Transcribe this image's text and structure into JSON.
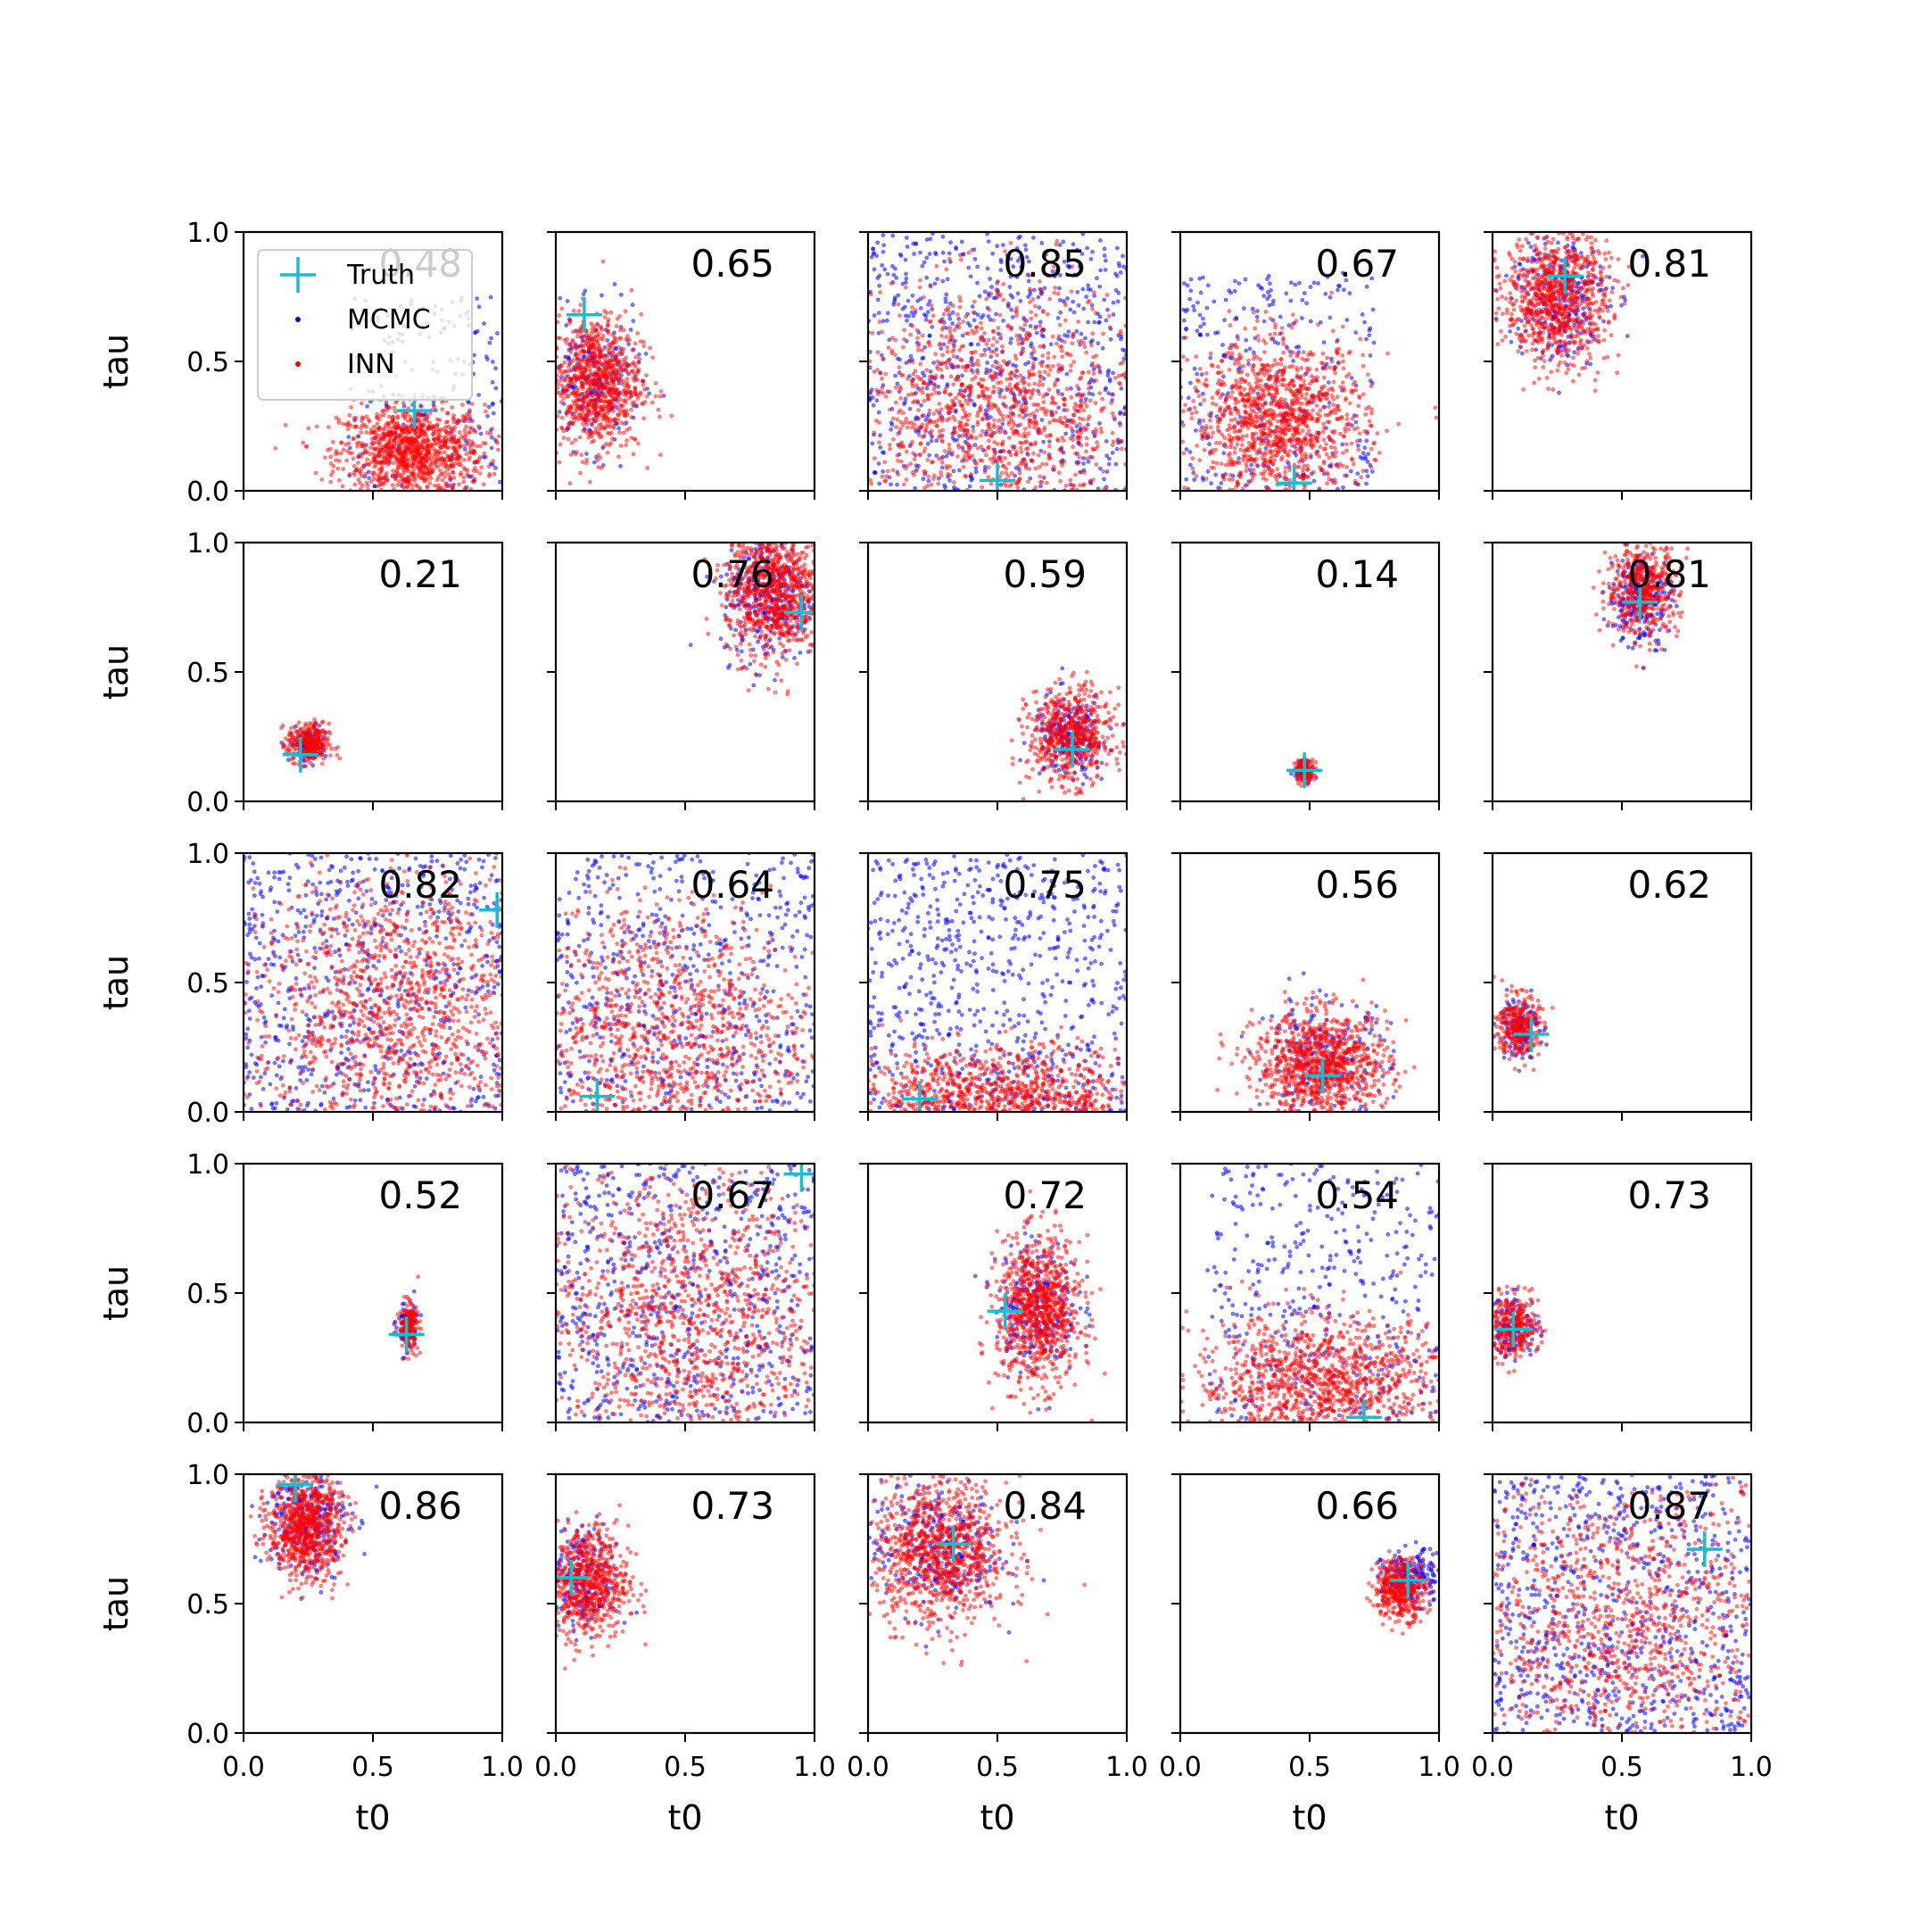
{
  "chart_data": {
    "type": "scatter",
    "grid": false,
    "legend_placement": "top-left",
    "legend": {
      "entries": [
        {
          "label": "Truth",
          "color": "#17becf",
          "marker": "plus"
        },
        {
          "label": "MCMC",
          "color": "#0000ff",
          "marker": "dot"
        },
        {
          "label": "INN",
          "color": "#ff0000",
          "marker": "dot"
        }
      ]
    },
    "xlabel": "t0",
    "ylabel": "tau",
    "xlim": [
      0,
      1
    ],
    "ylim": [
      0,
      1
    ],
    "xticks": [
      "0.0",
      "0.5",
      "1.0"
    ],
    "yticks": [
      "0.0",
      "0.5",
      "1.0"
    ],
    "colors": {
      "truth": "#17becf",
      "mcmc": "#0000ff",
      "inn": "#ff0000"
    },
    "panels": [
      {
        "score": "0.48",
        "truth": [
          0.66,
          0.31
        ],
        "mcmc": {
          "cx": 0.75,
          "cy": 0.35,
          "sx": 0.35,
          "sy": 0.4,
          "n": 220,
          "uniform": true
        },
        "inn": {
          "cx": 0.65,
          "cy": 0.15,
          "sx": 0.14,
          "sy": 0.09,
          "n": 1100
        }
      },
      {
        "score": "0.65",
        "truth": [
          0.11,
          0.68
        ],
        "mcmc": {
          "cx": 0.15,
          "cy": 0.42,
          "sx": 0.09,
          "sy": 0.13,
          "n": 200
        },
        "inn": {
          "cx": 0.15,
          "cy": 0.42,
          "sx": 0.09,
          "sy": 0.13,
          "n": 900
        }
      },
      {
        "score": "0.85",
        "truth": [
          0.5,
          0.04
        ],
        "mcmc": {
          "cx": 0.5,
          "cy": 0.5,
          "sx": 0.5,
          "sy": 0.5,
          "n": 700,
          "uniform": true
        },
        "inn": {
          "cx": 0.5,
          "cy": 0.3,
          "sx": 0.28,
          "sy": 0.24,
          "n": 1300
        }
      },
      {
        "score": "0.67",
        "truth": [
          0.44,
          0.03
        ],
        "mcmc": {
          "cx": 0.35,
          "cy": 0.4,
          "sx": 0.4,
          "sy": 0.45,
          "n": 350,
          "uniform": true
        },
        "inn": {
          "cx": 0.38,
          "cy": 0.27,
          "sx": 0.17,
          "sy": 0.15,
          "n": 1200
        }
      },
      {
        "score": "0.81",
        "truth": [
          0.28,
          0.83
        ],
        "mcmc": {
          "cx": 0.25,
          "cy": 0.75,
          "sx": 0.1,
          "sy": 0.13,
          "n": 250
        },
        "inn": {
          "cx": 0.25,
          "cy": 0.75,
          "sx": 0.1,
          "sy": 0.13,
          "n": 900
        }
      },
      {
        "score": "0.21",
        "truth": [
          0.22,
          0.18
        ],
        "mcmc": {
          "cx": 0.25,
          "cy": 0.22,
          "sx": 0.035,
          "sy": 0.035,
          "n": 80
        },
        "inn": {
          "cx": 0.25,
          "cy": 0.22,
          "sx": 0.04,
          "sy": 0.04,
          "n": 300
        }
      },
      {
        "score": "0.76",
        "truth": [
          0.95,
          0.73
        ],
        "mcmc": {
          "cx": 0.82,
          "cy": 0.8,
          "sx": 0.09,
          "sy": 0.13,
          "n": 300
        },
        "inn": {
          "cx": 0.84,
          "cy": 0.82,
          "sx": 0.09,
          "sy": 0.13,
          "n": 900
        }
      },
      {
        "score": "0.59",
        "truth": [
          0.79,
          0.2
        ],
        "mcmc": {
          "cx": 0.78,
          "cy": 0.25,
          "sx": 0.07,
          "sy": 0.08,
          "n": 200
        },
        "inn": {
          "cx": 0.78,
          "cy": 0.25,
          "sx": 0.08,
          "sy": 0.09,
          "n": 600
        }
      },
      {
        "score": "0.14",
        "truth": [
          0.48,
          0.12
        ],
        "mcmc": {
          "cx": 0.48,
          "cy": 0.12,
          "sx": 0.02,
          "sy": 0.02,
          "n": 60
        },
        "inn": {
          "cx": 0.48,
          "cy": 0.12,
          "sx": 0.018,
          "sy": 0.022,
          "n": 150
        }
      },
      {
        "score": "0.81",
        "truth": [
          0.57,
          0.77
        ],
        "mcmc": {
          "cx": 0.57,
          "cy": 0.78,
          "sx": 0.06,
          "sy": 0.09,
          "n": 220
        },
        "inn": {
          "cx": 0.58,
          "cy": 0.82,
          "sx": 0.07,
          "sy": 0.09,
          "n": 500
        }
      },
      {
        "score": "0.82",
        "truth": [
          0.98,
          0.78
        ],
        "mcmc": {
          "cx": 0.5,
          "cy": 0.5,
          "sx": 0.5,
          "sy": 0.5,
          "n": 700,
          "uniform": true
        },
        "inn": {
          "cx": 0.6,
          "cy": 0.4,
          "sx": 0.3,
          "sy": 0.28,
          "n": 1400
        }
      },
      {
        "score": "0.64",
        "truth": [
          0.16,
          0.06
        ],
        "mcmc": {
          "cx": 0.5,
          "cy": 0.5,
          "sx": 0.5,
          "sy": 0.5,
          "n": 600,
          "uniform": true
        },
        "inn": {
          "cx": 0.4,
          "cy": 0.3,
          "sx": 0.3,
          "sy": 0.26,
          "n": 1200
        }
      },
      {
        "score": "0.75",
        "truth": [
          0.2,
          0.05
        ],
        "mcmc": {
          "cx": 0.5,
          "cy": 0.5,
          "sx": 0.5,
          "sy": 0.5,
          "n": 700,
          "uniform": true
        },
        "inn": {
          "cx": 0.5,
          "cy": 0.05,
          "sx": 0.3,
          "sy": 0.1,
          "n": 1200
        }
      },
      {
        "score": "0.56",
        "truth": [
          0.55,
          0.14
        ],
        "mcmc": {
          "cx": 0.55,
          "cy": 0.2,
          "sx": 0.13,
          "sy": 0.12,
          "n": 200
        },
        "inn": {
          "cx": 0.55,
          "cy": 0.18,
          "sx": 0.13,
          "sy": 0.1,
          "n": 1000
        }
      },
      {
        "score": "0.62",
        "truth": [
          0.15,
          0.3
        ],
        "mcmc": {
          "cx": 0.1,
          "cy": 0.33,
          "sx": 0.04,
          "sy": 0.06,
          "n": 120
        },
        "inn": {
          "cx": 0.1,
          "cy": 0.33,
          "sx": 0.04,
          "sy": 0.06,
          "n": 300
        }
      },
      {
        "score": "0.52",
        "truth": [
          0.63,
          0.34
        ],
        "mcmc": {
          "cx": 0.63,
          "cy": 0.37,
          "sx": 0.02,
          "sy": 0.05,
          "n": 80
        },
        "inn": {
          "cx": 0.64,
          "cy": 0.37,
          "sx": 0.018,
          "sy": 0.045,
          "n": 200
        }
      },
      {
        "score": "0.67",
        "truth": [
          0.95,
          0.96
        ],
        "mcmc": {
          "cx": 0.5,
          "cy": 0.5,
          "sx": 0.5,
          "sy": 0.5,
          "n": 700,
          "uniform": true
        },
        "inn": {
          "cx": 0.5,
          "cy": 0.4,
          "sx": 0.3,
          "sy": 0.3,
          "n": 1300
        }
      },
      {
        "score": "0.72",
        "truth": [
          0.53,
          0.43
        ],
        "mcmc": {
          "cx": 0.65,
          "cy": 0.45,
          "sx": 0.08,
          "sy": 0.13,
          "n": 220
        },
        "inn": {
          "cx": 0.66,
          "cy": 0.43,
          "sx": 0.08,
          "sy": 0.14,
          "n": 900
        }
      },
      {
        "score": "0.54",
        "truth": [
          0.71,
          0.02
        ],
        "mcmc": {
          "cx": 0.55,
          "cy": 0.5,
          "sx": 0.45,
          "sy": 0.5,
          "n": 400,
          "uniform": true
        },
        "inn": {
          "cx": 0.55,
          "cy": 0.15,
          "sx": 0.25,
          "sy": 0.13,
          "n": 1200
        }
      },
      {
        "score": "0.73",
        "truth": [
          0.08,
          0.36
        ],
        "mcmc": {
          "cx": 0.08,
          "cy": 0.37,
          "sx": 0.05,
          "sy": 0.06,
          "n": 120
        },
        "inn": {
          "cx": 0.08,
          "cy": 0.37,
          "sx": 0.05,
          "sy": 0.06,
          "n": 300
        }
      },
      {
        "score": "0.86",
        "truth": [
          0.2,
          0.96
        ],
        "mcmc": {
          "cx": 0.25,
          "cy": 0.82,
          "sx": 0.08,
          "sy": 0.11,
          "n": 250
        },
        "inn": {
          "cx": 0.24,
          "cy": 0.8,
          "sx": 0.07,
          "sy": 0.1,
          "n": 800
        }
      },
      {
        "score": "0.73",
        "truth": [
          0.06,
          0.6
        ],
        "mcmc": {
          "cx": 0.1,
          "cy": 0.6,
          "sx": 0.07,
          "sy": 0.1,
          "n": 200
        },
        "inn": {
          "cx": 0.12,
          "cy": 0.58,
          "sx": 0.08,
          "sy": 0.11,
          "n": 700
        }
      },
      {
        "score": "0.84",
        "truth": [
          0.33,
          0.73
        ],
        "mcmc": {
          "cx": 0.25,
          "cy": 0.72,
          "sx": 0.13,
          "sy": 0.13,
          "n": 300
        },
        "inn": {
          "cx": 0.28,
          "cy": 0.7,
          "sx": 0.13,
          "sy": 0.14,
          "n": 1000
        }
      },
      {
        "score": "0.66",
        "truth": [
          0.88,
          0.59
        ],
        "mcmc": {
          "cx": 0.9,
          "cy": 0.6,
          "sx": 0.06,
          "sy": 0.05,
          "n": 200
        },
        "inn": {
          "cx": 0.85,
          "cy": 0.56,
          "sx": 0.05,
          "sy": 0.06,
          "n": 400
        }
      },
      {
        "score": "0.87",
        "truth": [
          0.82,
          0.71
        ],
        "mcmc": {
          "cx": 0.5,
          "cy": 0.5,
          "sx": 0.5,
          "sy": 0.5,
          "n": 800,
          "uniform": true
        },
        "inn": {
          "cx": 0.5,
          "cy": 0.4,
          "sx": 0.35,
          "sy": 0.3,
          "n": 1300
        }
      }
    ]
  }
}
